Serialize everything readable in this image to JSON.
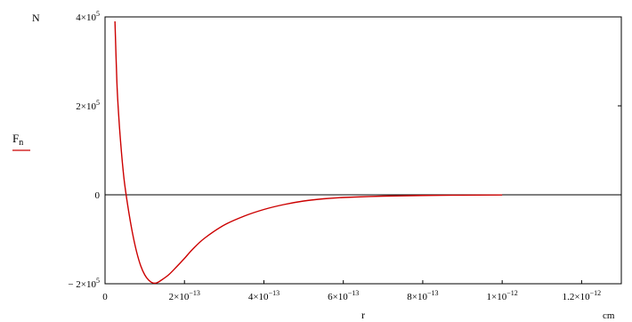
{
  "chart_data": {
    "type": "line",
    "ylabel_main": "F",
    "ylabel_sub": "n",
    "yunit": "N",
    "xlabel": "r",
    "xunit": "cm",
    "xlim": [
      0,
      1.3e-12
    ],
    "ylim": [
      -200000,
      400000
    ],
    "x_ticks": [
      {
        "value": 0,
        "mant": "0",
        "exp": ""
      },
      {
        "value": 2e-13,
        "mant": "2×10",
        "exp": "−13"
      },
      {
        "value": 4e-13,
        "mant": "4×10",
        "exp": "−13"
      },
      {
        "value": 6e-13,
        "mant": "6×10",
        "exp": "−13"
      },
      {
        "value": 8e-13,
        "mant": "8×10",
        "exp": "−13"
      },
      {
        "value": 1e-12,
        "mant": "1×10",
        "exp": "−12"
      },
      {
        "value": 1.2e-12,
        "mant": "1.2×10",
        "exp": "−12"
      }
    ],
    "y_ticks": [
      {
        "value": 400000,
        "mant": "4×10",
        "exp": "5"
      },
      {
        "value": 200000,
        "mant": "2×10",
        "exp": "5"
      },
      {
        "value": 0,
        "mant": "0",
        "exp": ""
      },
      {
        "value": -200000,
        "mant": "− 2×10",
        "exp": "5"
      }
    ],
    "series": [
      {
        "color": "#cc0000",
        "points": [
          [
            2.5e-14,
            390000
          ],
          [
            3e-14,
            250000
          ],
          [
            3.5e-14,
            170000
          ],
          [
            4e-14,
            110000
          ],
          [
            4.5e-14,
            60000
          ],
          [
            5e-14,
            20000
          ],
          [
            6e-14,
            -40000
          ],
          [
            7e-14,
            -90000
          ],
          [
            8e-14,
            -130000
          ],
          [
            9e-14,
            -160000
          ],
          [
            1e-13,
            -180000
          ],
          [
            1.1e-13,
            -192000
          ],
          [
            1.2e-13,
            -198000
          ],
          [
            1.3e-13,
            -198000
          ],
          [
            1.4e-13,
            -193000
          ],
          [
            1.6e-13,
            -180000
          ],
          [
            1.8e-13,
            -162000
          ],
          [
            2e-13,
            -143000
          ],
          [
            2.2e-13,
            -123000
          ],
          [
            2.5e-13,
            -98000
          ],
          [
            3e-13,
            -68000
          ],
          [
            3.5e-13,
            -48000
          ],
          [
            4e-13,
            -33000
          ],
          [
            4.5e-13,
            -22000
          ],
          [
            5e-13,
            -14000
          ],
          [
            5.5e-13,
            -9000
          ],
          [
            6e-13,
            -6000
          ],
          [
            7e-13,
            -3000
          ],
          [
            8e-13,
            -1500
          ],
          [
            9e-13,
            -800
          ],
          [
            1e-12,
            -400
          ]
        ]
      }
    ]
  }
}
